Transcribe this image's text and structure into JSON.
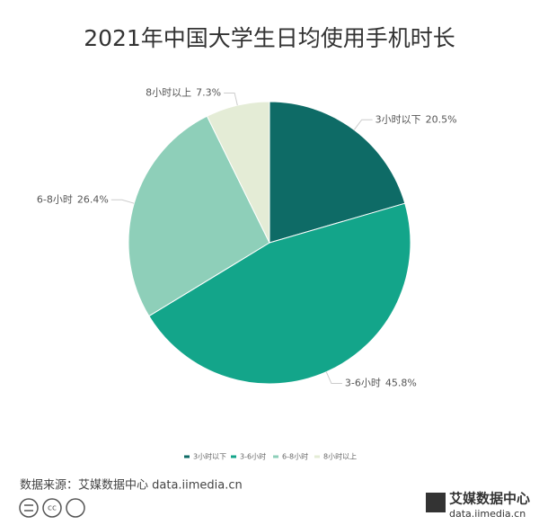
{
  "chart_data": {
    "type": "pie",
    "title": "2021年中国大学生日均使用手机时长",
    "categories": [
      "3小时以下",
      "3-6小时",
      "6-8小时",
      "8小时以上"
    ],
    "values": [
      20.5,
      45.8,
      26.4,
      7.3
    ],
    "value_labels": [
      "20.5%",
      "45.8%",
      "26.4%",
      "7.3%"
    ],
    "colors": [
      "#0e6b66",
      "#13a58a",
      "#8ecfb9",
      "#e4ecd6"
    ],
    "legend": "bottom"
  },
  "footer": {
    "source": "数据来源：艾媒数据中心 data.iimedia.cn",
    "logo_name": "艾媒数据中心",
    "logo_url": "data.iimedia.cn"
  }
}
